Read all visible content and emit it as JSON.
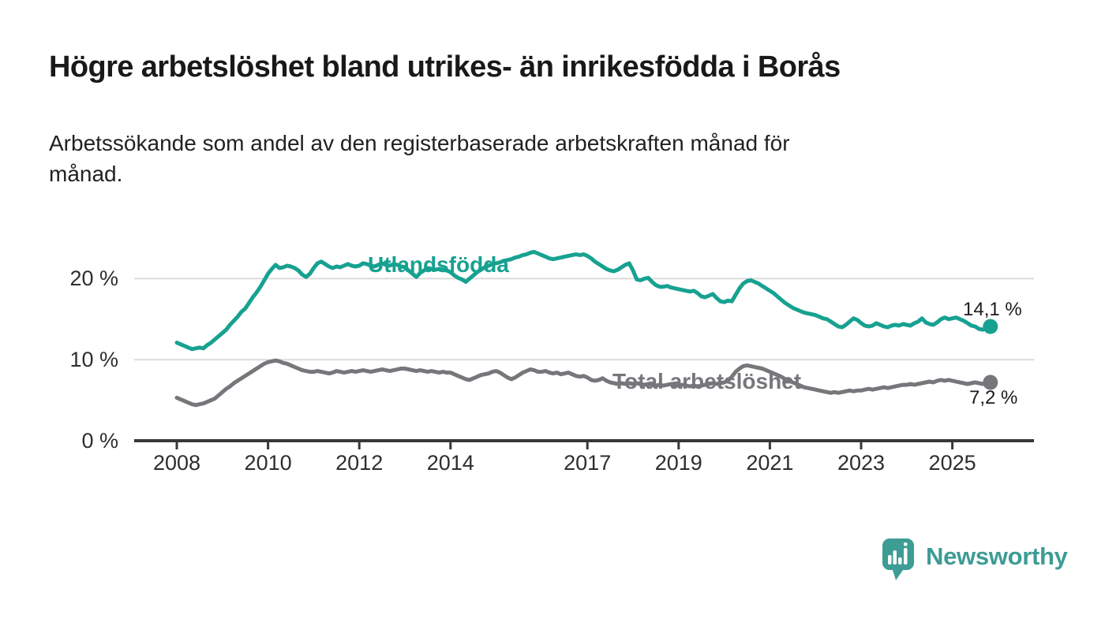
{
  "header": {
    "title": "Högre arbetslöshet bland utrikes- än inrikesfödda i Borås",
    "subtitle_lines": [
      "Arbetssökande som andel av den registerbaserade arbetskraften månad för",
      "månad."
    ]
  },
  "chart_data": {
    "type": "line",
    "title": "Högre arbetslöshet bland utrikes- än inrikesfödda i Borås",
    "subtitle": "Arbetssökande som andel av den registerbaserade arbetskraften månad för månad.",
    "unit": "%",
    "grid": "horizontal-only",
    "ylim": [
      0,
      25
    ],
    "xlim": [
      2007.1,
      2026.8
    ],
    "x_axis": {
      "start_year": 2008,
      "interval": "monthly",
      "ticks": [
        {
          "year": 2008,
          "label": "2008"
        },
        {
          "year": 2010,
          "label": "2010"
        },
        {
          "year": 2012,
          "label": "2012"
        },
        {
          "year": 2014,
          "label": "2014"
        },
        {
          "year": 2017,
          "label": "2017"
        },
        {
          "year": 2019,
          "label": "2019"
        },
        {
          "year": 2021,
          "label": "2021"
        },
        {
          "year": 2023,
          "label": "2023"
        },
        {
          "year": 2025,
          "label": "2025"
        }
      ]
    },
    "y_axis": {
      "ticks": [
        {
          "value": 20,
          "label": "20 %"
        },
        {
          "value": 10,
          "label": "10 %"
        },
        {
          "value": 0,
          "label": "0 %"
        }
      ]
    },
    "series": [
      {
        "id": "utlandsfodda",
        "name": "Utlandsfödda",
        "color": "#17a191",
        "end_label": "14,1 %",
        "last_value": 14.1,
        "start": "2008-01",
        "values": [
          12.1,
          11.9,
          11.7,
          11.5,
          11.3,
          11.4,
          11.5,
          11.4,
          11.8,
          12.1,
          12.5,
          12.9,
          13.3,
          13.7,
          14.3,
          14.8,
          15.3,
          15.9,
          16.3,
          17.0,
          17.7,
          18.3,
          19.0,
          19.8,
          20.6,
          21.2,
          21.7,
          21.3,
          21.4,
          21.6,
          21.5,
          21.3,
          21.0,
          20.5,
          20.2,
          20.6,
          21.3,
          21.9,
          22.1,
          21.8,
          21.5,
          21.3,
          21.5,
          21.4,
          21.6,
          21.8,
          21.6,
          21.5,
          21.6,
          21.9,
          21.8,
          21.6,
          21.5,
          21.7,
          21.9,
          21.7,
          21.6,
          21.8,
          21.7,
          21.5,
          21.4,
          21.0,
          20.6,
          20.2,
          20.7,
          21.0,
          21.3,
          21.2,
          21.1,
          21.2,
          21.1,
          21.0,
          20.8,
          20.4,
          20.1,
          19.9,
          19.6,
          20.0,
          20.4,
          20.8,
          21.1,
          21.4,
          21.6,
          21.8,
          21.9,
          22.0,
          22.2,
          22.3,
          22.4,
          22.6,
          22.7,
          22.9,
          23.0,
          23.2,
          23.3,
          23.1,
          22.9,
          22.7,
          22.5,
          22.4,
          22.5,
          22.6,
          22.7,
          22.8,
          22.9,
          23.0,
          22.9,
          23.0,
          22.8,
          22.5,
          22.1,
          21.8,
          21.5,
          21.2,
          21.0,
          20.9,
          21.1,
          21.4,
          21.7,
          21.9,
          21.0,
          19.9,
          19.8,
          20.0,
          20.1,
          19.6,
          19.2,
          19.0,
          19.0,
          19.1,
          18.9,
          18.8,
          18.7,
          18.6,
          18.5,
          18.4,
          18.5,
          18.2,
          17.8,
          17.7,
          17.9,
          18.1,
          17.6,
          17.2,
          17.1,
          17.3,
          17.2,
          18.0,
          18.8,
          19.4,
          19.7,
          19.8,
          19.6,
          19.4,
          19.1,
          18.8,
          18.5,
          18.2,
          17.8,
          17.4,
          17.0,
          16.7,
          16.4,
          16.2,
          16.0,
          15.8,
          15.7,
          15.6,
          15.5,
          15.3,
          15.1,
          15.0,
          14.7,
          14.4,
          14.1,
          14.0,
          14.3,
          14.7,
          15.1,
          14.9,
          14.5,
          14.2,
          14.1,
          14.2,
          14.5,
          14.3,
          14.1,
          14.0,
          14.2,
          14.3,
          14.2,
          14.4,
          14.3,
          14.2,
          14.5,
          14.7,
          15.1,
          14.6,
          14.4,
          14.3,
          14.6,
          15.0,
          15.2,
          15.0,
          15.1,
          15.2,
          15.0,
          14.8,
          14.5,
          14.2,
          14.1,
          13.8,
          13.7,
          14.0,
          14.1
        ]
      },
      {
        "id": "total",
        "name": "Total arbetslöshet",
        "color": "#76767b",
        "end_label": "7,2 %",
        "last_value": 7.2,
        "start": "2008-01",
        "values": [
          5.3,
          5.1,
          4.9,
          4.7,
          4.5,
          4.4,
          4.5,
          4.6,
          4.8,
          5.0,
          5.2,
          5.6,
          6.0,
          6.4,
          6.7,
          7.1,
          7.4,
          7.7,
          8.0,
          8.3,
          8.6,
          8.9,
          9.2,
          9.5,
          9.7,
          9.8,
          9.9,
          9.8,
          9.6,
          9.5,
          9.3,
          9.1,
          8.9,
          8.7,
          8.6,
          8.5,
          8.5,
          8.6,
          8.5,
          8.4,
          8.3,
          8.4,
          8.6,
          8.5,
          8.4,
          8.5,
          8.6,
          8.5,
          8.6,
          8.7,
          8.6,
          8.5,
          8.6,
          8.7,
          8.8,
          8.7,
          8.6,
          8.7,
          8.8,
          8.9,
          8.9,
          8.8,
          8.7,
          8.6,
          8.7,
          8.6,
          8.5,
          8.6,
          8.5,
          8.4,
          8.5,
          8.4,
          8.4,
          8.2,
          8.0,
          7.8,
          7.6,
          7.5,
          7.7,
          7.9,
          8.1,
          8.2,
          8.3,
          8.5,
          8.6,
          8.4,
          8.1,
          7.8,
          7.6,
          7.8,
          8.1,
          8.4,
          8.6,
          8.8,
          8.7,
          8.5,
          8.5,
          8.6,
          8.4,
          8.3,
          8.4,
          8.2,
          8.3,
          8.4,
          8.2,
          8.0,
          7.9,
          8.0,
          7.8,
          7.5,
          7.4,
          7.5,
          7.7,
          7.4,
          7.2,
          7.1,
          7.0,
          7.1,
          7.0,
          7.1,
          7.0,
          7.1,
          7.0,
          6.9,
          7.0,
          6.9,
          6.8,
          6.9,
          6.8,
          6.9,
          7.0,
          6.9,
          6.8,
          6.9,
          6.8,
          6.7,
          6.8,
          6.7,
          6.8,
          6.9,
          7.0,
          7.1,
          7.0,
          7.1,
          7.2,
          7.4,
          7.9,
          8.5,
          8.9,
          9.2,
          9.3,
          9.2,
          9.1,
          9.0,
          8.9,
          8.7,
          8.5,
          8.3,
          8.1,
          7.9,
          7.6,
          7.4,
          7.2,
          7.0,
          6.8,
          6.6,
          6.5,
          6.4,
          6.3,
          6.2,
          6.1,
          6.0,
          5.9,
          6.0,
          5.9,
          6.0,
          6.1,
          6.2,
          6.1,
          6.2,
          6.2,
          6.3,
          6.4,
          6.3,
          6.4,
          6.5,
          6.6,
          6.5,
          6.6,
          6.7,
          6.8,
          6.9,
          6.9,
          7.0,
          6.9,
          7.0,
          7.1,
          7.2,
          7.3,
          7.2,
          7.4,
          7.5,
          7.4,
          7.5,
          7.4,
          7.3,
          7.2,
          7.1,
          7.0,
          7.1,
          7.2,
          7.1,
          7.0,
          7.1,
          7.2
        ]
      }
    ],
    "colors": {
      "axis": "#383838",
      "gridline": "#dcdcdc",
      "tick_text": "#2e2e2e"
    }
  },
  "footer": {
    "brand": "Newsworthy",
    "brand_color": "#3d9c94",
    "logo_icon": "bar-chart-speech-bubble"
  }
}
